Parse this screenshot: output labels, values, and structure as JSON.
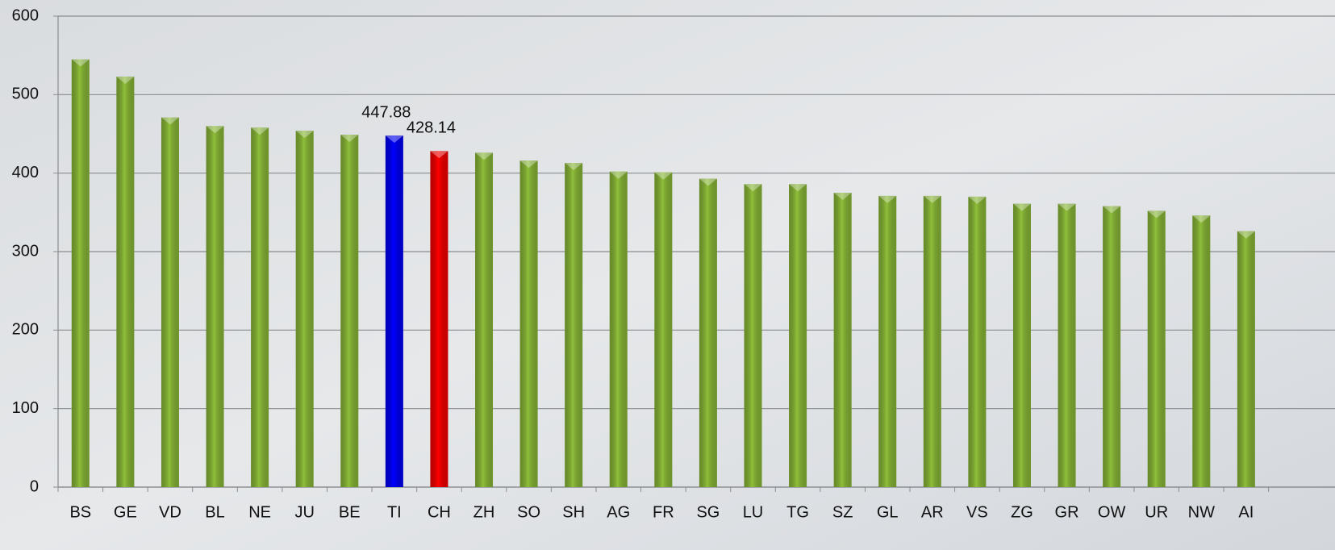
{
  "chart_data": {
    "type": "bar",
    "categories": [
      "BS",
      "GE",
      "VD",
      "BL",
      "NE",
      "JU",
      "BE",
      "TI",
      "CH",
      "ZH",
      "SO",
      "SH",
      "AG",
      "FR",
      "SG",
      "LU",
      "TG",
      "SZ",
      "GL",
      "AR",
      "VS",
      "ZG",
      "GR",
      "OW",
      "UR",
      "NW",
      "AI"
    ],
    "values": [
      545,
      523,
      471,
      460,
      458,
      454,
      449,
      447.88,
      428.14,
      426,
      416,
      413,
      402,
      401,
      393,
      386,
      386,
      375,
      371,
      371,
      370,
      361,
      361,
      358,
      352,
      346,
      326
    ],
    "value_labels": [
      null,
      null,
      null,
      null,
      null,
      null,
      null,
      "447.88",
      "428.14",
      null,
      null,
      null,
      null,
      null,
      null,
      null,
      null,
      null,
      null,
      null,
      null,
      null,
      null,
      null,
      null,
      null,
      null
    ],
    "colors": [
      "#8fbf3a",
      "#8fbf3a",
      "#8fbf3a",
      "#8fbf3a",
      "#8fbf3a",
      "#8fbf3a",
      "#8fbf3a",
      "#0000ff",
      "#ff0000",
      "#8fbf3a",
      "#8fbf3a",
      "#8fbf3a",
      "#8fbf3a",
      "#8fbf3a",
      "#8fbf3a",
      "#8fbf3a",
      "#8fbf3a",
      "#8fbf3a",
      "#8fbf3a",
      "#8fbf3a",
      "#8fbf3a",
      "#8fbf3a",
      "#8fbf3a",
      "#8fbf3a",
      "#8fbf3a",
      "#8fbf3a",
      "#8fbf3a"
    ],
    "ylim": [
      0,
      600
    ],
    "yticks": [
      0,
      100,
      200,
      300,
      400,
      500,
      600
    ],
    "grid": true
  }
}
